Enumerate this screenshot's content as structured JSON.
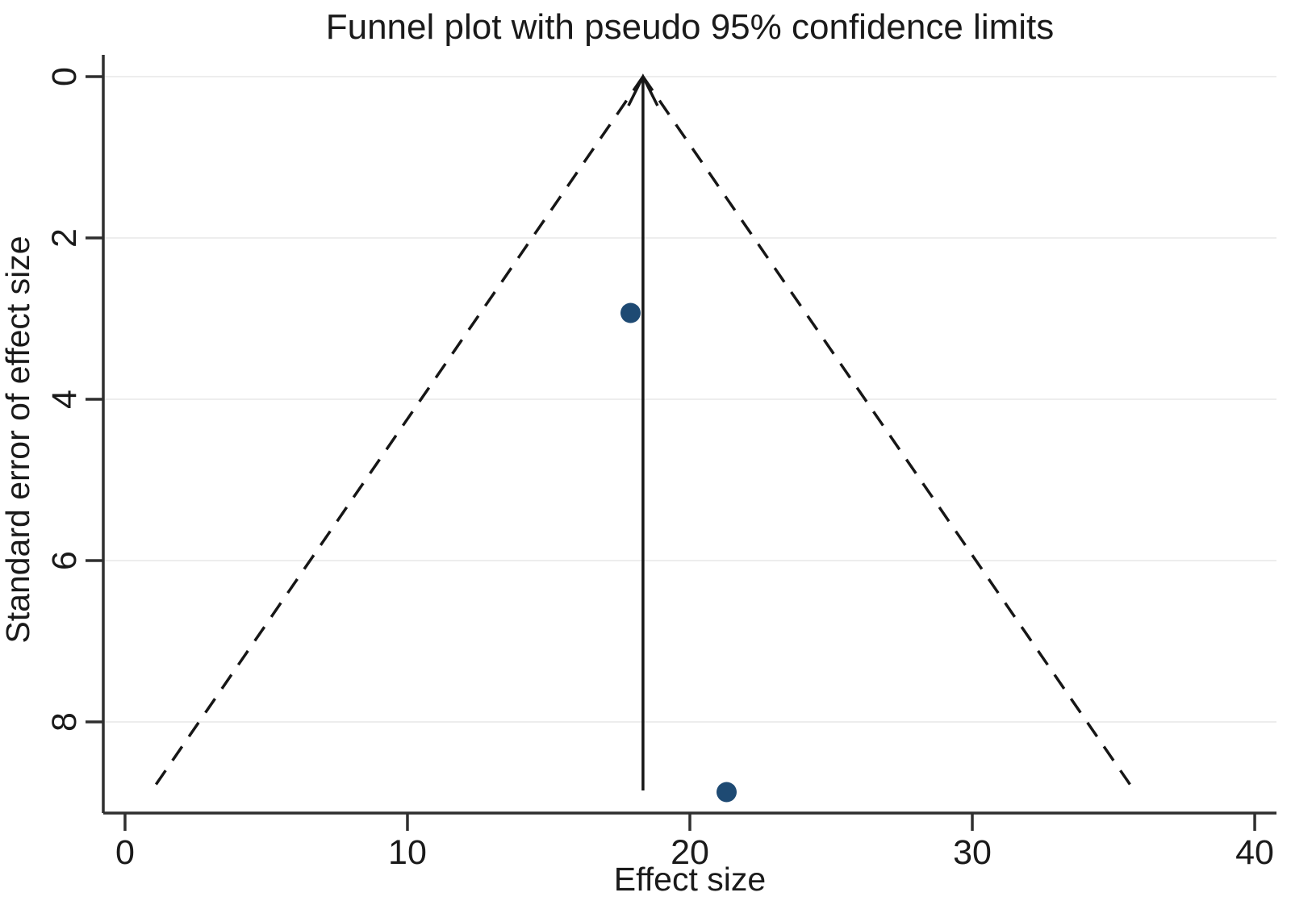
{
  "figure": {
    "title": "Funnel plot with pseudo 95% confidence limits"
  },
  "chart_data": {
    "type": "scatter",
    "title": "Funnel plot with pseudo 95% confidence limits",
    "xlabel": "Effect size",
    "ylabel": "Standard error of effect size",
    "xlim": [
      -0.77,
      40.77
    ],
    "ylim": [
      -0.27,
      9.13
    ],
    "y_axis_inverted": true,
    "x_ticks": [
      0,
      10,
      20,
      30,
      40
    ],
    "y_ticks": [
      0,
      2,
      4,
      6,
      8
    ],
    "grid": "horizontal-light",
    "legend": "none",
    "points": [
      {
        "effect_size": 17.9,
        "standard_error": 2.93
      },
      {
        "effect_size": 21.3,
        "standard_error": 8.87
      }
    ],
    "pooled_effect_line": {
      "x": 18.34,
      "se_from": 0,
      "se_to": 8.85,
      "arrow_at_top": true,
      "style": "solid"
    },
    "pseudo_ci_limits": {
      "apex": {
        "x": 18.34,
        "se": 0
      },
      "left_end": {
        "x": 0.95,
        "se": 8.85
      },
      "right_end": {
        "x": 35.73,
        "se": 8.85
      },
      "style": "dashed"
    },
    "colors": {
      "marker": "#1e4a73",
      "line": "#161616",
      "axis": "#2f2f2f",
      "grid": "#ededed",
      "text": "#1a1a1a",
      "background": "#ffffff"
    }
  }
}
